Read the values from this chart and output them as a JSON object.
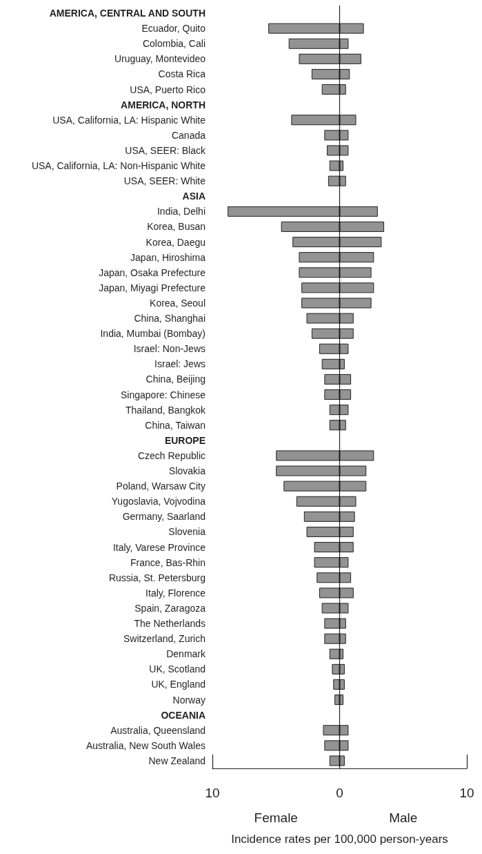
{
  "chart_data": {
    "type": "bar",
    "orientation": "horizontal",
    "stacked": true,
    "xlabel": "Incidence rates per 100,000 person-years",
    "categories": [
      "AMERICA, CENTRAL AND SOUTH",
      "Ecuador, Quito",
      "Colombia, Cali",
      "Uruguay, Montevideo",
      "Costa Rica",
      "USA, Puerto Rico",
      "AMERICA, NORTH",
      "USA, California, LA: Hispanic White",
      "Canada",
      "USA, SEER: Black",
      "USA, California, LA: Non-Hispanic White",
      "USA, SEER: White",
      "ASIA",
      "India, Delhi",
      "Korea, Busan",
      "Korea, Daegu",
      "Japan, Hiroshima",
      "Japan, Osaka Prefecture",
      "Japan, Miyagi Prefecture",
      "Korea, Seoul",
      "China, Shanghai",
      "India, Mumbai (Bombay)",
      "Israel: Non-Jews",
      "Israel: Jews",
      "China, Beijing",
      "Singapore: Chinese",
      "Thailand, Bangkok",
      "China, Taiwan",
      "EUROPE",
      "Czech Republic",
      "Slovakia",
      "Poland, Warsaw City",
      "Yugoslavia, Vojvodina",
      "Germany, Saarland",
      "Slovenia",
      "Italy, Varese Province",
      "France, Bas-Rhin",
      "Russia, St. Petersburg",
      "Italy, Florence",
      "Spain, Zaragoza",
      "The Netherlands",
      "Switzerland, Zurich",
      "Denmark",
      "UK, Scotland",
      "UK, England",
      "Norway",
      "OCEANIA",
      "Australia, Queensland",
      "Australia, New South Wales",
      "New Zealand"
    ],
    "series": [
      {
        "color": "#939393",
        "values": [
          null,
          -5.6,
          -4.0,
          -3.2,
          -2.2,
          -1.4,
          null,
          -3.8,
          -1.2,
          -1.0,
          -0.8,
          -0.9,
          null,
          -8.8,
          -4.6,
          -3.7,
          -3.2,
          -3.2,
          -3.0,
          -3.0,
          -2.6,
          -2.2,
          -1.6,
          -1.4,
          -1.2,
          -1.2,
          -0.8,
          -0.8,
          null,
          -5.0,
          -5.0,
          -4.4,
          -3.4,
          -2.8,
          -2.6,
          -2.0,
          -2.0,
          -1.8,
          -1.6,
          -1.4,
          -1.2,
          -1.2,
          -0.8,
          -0.6,
          -0.5,
          -0.4,
          null,
          -1.3,
          -1.2,
          -0.8
        ]
      },
      {
        "color": "#939393",
        "values": [
          null,
          1.9,
          0.7,
          1.7,
          0.8,
          0.5,
          null,
          1.3,
          0.7,
          0.7,
          0.3,
          0.5,
          null,
          3.0,
          3.5,
          3.3,
          2.7,
          2.5,
          2.7,
          2.5,
          1.1,
          1.1,
          0.7,
          0.4,
          0.9,
          0.9,
          0.7,
          0.5,
          null,
          2.7,
          2.1,
          2.1,
          1.3,
          1.2,
          1.1,
          1.1,
          0.7,
          0.9,
          1.1,
          0.7,
          0.5,
          0.5,
          0.3,
          0.4,
          0.4,
          0.3,
          null,
          0.7,
          0.7,
          0.4
        ]
      }
    ],
    "xlim": [
      -10,
      10
    ],
    "xticks": [
      {
        "value": -10,
        "label": "10"
      },
      0,
      10
    ],
    "annotations": [
      "Female",
      "Male"
    ],
    "ref_lines": [
      {
        "axis": "x",
        "value": 0
      }
    ],
    "grid": false
  }
}
